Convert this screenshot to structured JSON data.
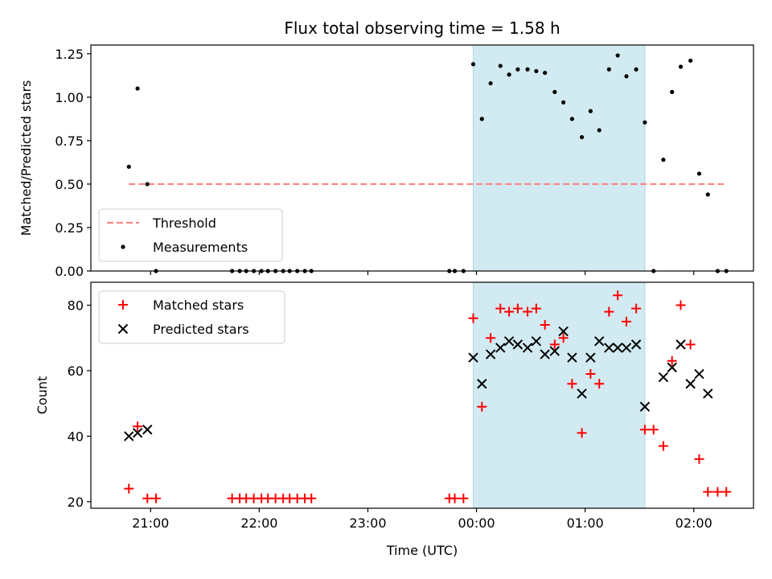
{
  "figure": {
    "title": "Flux total observing time = 1.58 h",
    "xlabel": "Time (UTC)"
  },
  "colors": {
    "span": "#add8e6",
    "threshold": "#ff7f7f",
    "measurements": "#000000",
    "matched": "#ff0000",
    "predicted": "#000000"
  },
  "chart_data": [
    {
      "type": "scatter",
      "ylabel": "Matched/Predicted stars",
      "xlim_hours": [
        20.45,
        26.55
      ],
      "ylim": [
        0,
        1.3
      ],
      "yticks": [
        "0.00",
        "0.25",
        "0.50",
        "0.75",
        "1.00",
        "1.25"
      ],
      "xticks_hours": [
        21,
        22,
        23,
        24,
        25,
        26
      ],
      "span_hours": [
        23.97,
        25.55
      ],
      "threshold": {
        "name": "Threshold",
        "y": 0.5,
        "x_range_hours": [
          20.8,
          26.3
        ]
      },
      "series": [
        {
          "name": "Measurements",
          "x_hours": [
            20.8,
            20.88,
            20.97,
            21.05,
            21.75,
            21.82,
            21.88,
            21.95,
            22.02,
            22.08,
            22.15,
            22.22,
            22.28,
            22.35,
            22.42,
            22.48,
            23.75,
            23.8,
            23.88,
            23.97,
            24.05,
            24.13,
            24.22,
            24.3,
            24.38,
            24.47,
            24.55,
            24.63,
            24.72,
            24.8,
            24.88,
            24.97,
            25.05,
            25.13,
            25.22,
            25.3,
            25.38,
            25.47,
            25.55,
            25.63,
            25.72,
            25.8,
            25.88,
            25.97,
            26.05,
            26.13,
            26.22,
            26.3
          ],
          "y": [
            0.6,
            1.05,
            0.5,
            0.0,
            0.0,
            0.0,
            0.0,
            0.0,
            0.0,
            0.0,
            0.0,
            0.0,
            0.0,
            0.0,
            0.0,
            0.0,
            0.0,
            0.0,
            0.0,
            1.19,
            0.875,
            1.08,
            1.18,
            1.13,
            1.16,
            1.16,
            1.15,
            1.14,
            1.03,
            0.97,
            0.875,
            0.77,
            0.92,
            0.81,
            1.16,
            1.24,
            1.12,
            1.16,
            0.855,
            0.0,
            0.64,
            1.03,
            1.175,
            1.21,
            0.56,
            0.44,
            0.0,
            0.0
          ]
        }
      ]
    },
    {
      "type": "scatter",
      "ylabel": "Count",
      "xlim_hours": [
        20.45,
        26.55
      ],
      "ylim": [
        18,
        87
      ],
      "yticks": [
        "20",
        "40",
        "60",
        "80"
      ],
      "xticks_hours": [
        21,
        22,
        23,
        24,
        25,
        26
      ],
      "xtick_labels": [
        "21:00",
        "22:00",
        "23:00",
        "00:00",
        "01:00",
        "02:00"
      ],
      "span_hours": [
        23.97,
        25.55
      ],
      "series": [
        {
          "name": "Matched stars",
          "marker": "plus",
          "x_hours": [
            20.8,
            20.88,
            20.97,
            21.05,
            21.75,
            21.82,
            21.88,
            21.95,
            22.02,
            22.08,
            22.15,
            22.22,
            22.28,
            22.35,
            22.42,
            22.48,
            23.75,
            23.8,
            23.88,
            23.97,
            24.05,
            24.13,
            24.22,
            24.3,
            24.38,
            24.47,
            24.55,
            24.63,
            24.72,
            24.8,
            24.88,
            24.97,
            25.05,
            25.13,
            25.22,
            25.3,
            25.38,
            25.47,
            25.55,
            25.63,
            25.72,
            25.8,
            25.88,
            25.97,
            26.05,
            26.13,
            26.22,
            26.3
          ],
          "y": [
            24,
            43,
            21,
            21,
            21,
            21,
            21,
            21,
            21,
            21,
            21,
            21,
            21,
            21,
            21,
            21,
            21,
            21,
            21,
            76,
            49,
            70,
            79,
            78,
            79,
            78,
            79,
            74,
            68,
            70,
            56,
            41,
            59,
            56,
            78,
            83,
            75,
            79,
            42,
            42,
            37,
            63,
            80,
            68,
            33,
            23,
            23,
            23
          ]
        },
        {
          "name": "Predicted stars",
          "marker": "x",
          "x_hours": [
            20.8,
            20.88,
            20.97,
            23.97,
            24.05,
            24.13,
            24.22,
            24.3,
            24.38,
            24.47,
            24.55,
            24.63,
            24.72,
            24.8,
            24.88,
            24.97,
            25.05,
            25.13,
            25.22,
            25.3,
            25.38,
            25.47,
            25.55,
            25.72,
            25.8,
            25.88,
            25.97,
            26.05,
            26.13
          ],
          "y": [
            40,
            41,
            42,
            64,
            56,
            65,
            67,
            69,
            68,
            67,
            69,
            65,
            66,
            72,
            64,
            53,
            64,
            69,
            67,
            67,
            67,
            68,
            49,
            58,
            61,
            68,
            56,
            59,
            53
          ]
        }
      ]
    }
  ]
}
